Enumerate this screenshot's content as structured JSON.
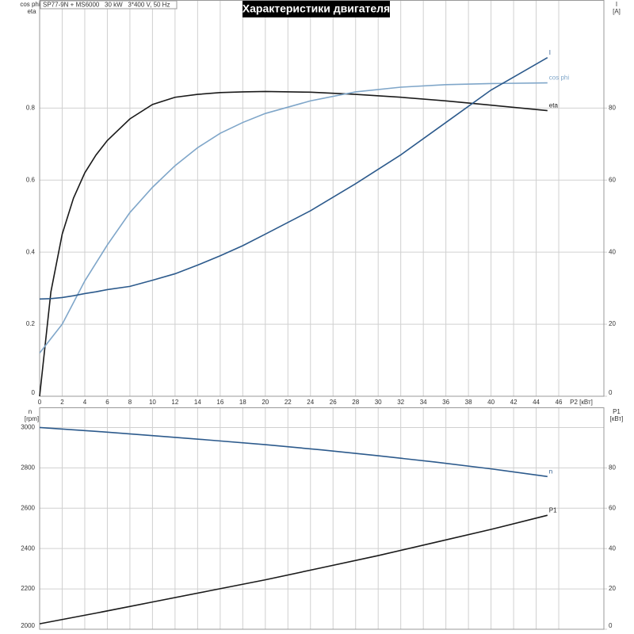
{
  "chart_data": [
    {
      "type": "line",
      "title": "Характеристики двигателя",
      "subtitle": "SP77-9N + MS6000   30 kW   3*400 V, 50 Hz",
      "xlabel": "P2 [кВт]",
      "ylabel_lines": [
        "cos phi",
        "eta"
      ],
      "y2label_lines": [
        "I",
        "[A]"
      ],
      "x": [
        0,
        1,
        2,
        3,
        4,
        5,
        6,
        8,
        10,
        12,
        14,
        16,
        18,
        20,
        24,
        28,
        32,
        36,
        40,
        45
      ],
      "xlim": [
        0,
        50
      ],
      "xticks": [
        0,
        2,
        4,
        6,
        8,
        10,
        12,
        14,
        16,
        18,
        20,
        22,
        24,
        26,
        28,
        30,
        32,
        34,
        36,
        38,
        40,
        42,
        44,
        46
      ],
      "ylim": [
        0,
        1.1
      ],
      "yticks": [
        0,
        0.2,
        0.4,
        0.6,
        0.8
      ],
      "y2lim": [
        0,
        110
      ],
      "y2ticks": [
        0,
        20,
        40,
        60,
        80
      ],
      "grid": true,
      "series": [
        {
          "name": "eta",
          "color": "#1a1a1a",
          "values": [
            0,
            0.29,
            0.45,
            0.55,
            0.62,
            0.67,
            0.71,
            0.77,
            0.81,
            0.83,
            0.838,
            0.843,
            0.845,
            0.846,
            0.844,
            0.838,
            0.83,
            0.82,
            0.808,
            0.793
          ]
        },
        {
          "name": "cos phi",
          "color": "#7fa6c9",
          "values": [
            0.12,
            0.16,
            0.2,
            0.26,
            0.32,
            0.37,
            0.42,
            0.51,
            0.58,
            0.64,
            0.69,
            0.73,
            0.76,
            0.785,
            0.82,
            0.845,
            0.858,
            0.865,
            0.868,
            0.87
          ]
        },
        {
          "name": "I",
          "color": "#2c5a8c",
          "axis": "y2",
          "values": [
            27,
            27.1,
            27.4,
            27.9,
            28.5,
            29,
            29.6,
            30.5,
            32.2,
            34,
            36.4,
            39,
            41.8,
            45,
            51.5,
            59,
            67,
            76,
            85,
            94
          ]
        }
      ]
    },
    {
      "type": "line",
      "ylabel_lines": [
        "n",
        "[rpm]"
      ],
      "y2label_lines": [
        "P1",
        "[кВт]"
      ],
      "x": [
        0,
        5,
        10,
        15,
        20,
        25,
        30,
        35,
        40,
        45
      ],
      "xlim": [
        0,
        50
      ],
      "ylim": [
        2000,
        3100
      ],
      "yticks": [
        2000,
        2200,
        2400,
        2600,
        2800,
        3000
      ],
      "y2lim": [
        0,
        110
      ],
      "y2ticks": [
        0,
        20,
        40,
        60,
        80
      ],
      "grid": true,
      "series": [
        {
          "name": "n",
          "color": "#2c5a8c",
          "values": [
            3000,
            2981,
            2960,
            2938,
            2915,
            2889,
            2860,
            2829,
            2795,
            2757
          ]
        },
        {
          "name": "P1",
          "color": "#1a1a1a",
          "axis": "y2",
          "values": [
            2.7,
            8,
            13.5,
            19,
            24.5,
            30.5,
            36.5,
            43,
            49.5,
            56.5
          ]
        }
      ]
    }
  ]
}
